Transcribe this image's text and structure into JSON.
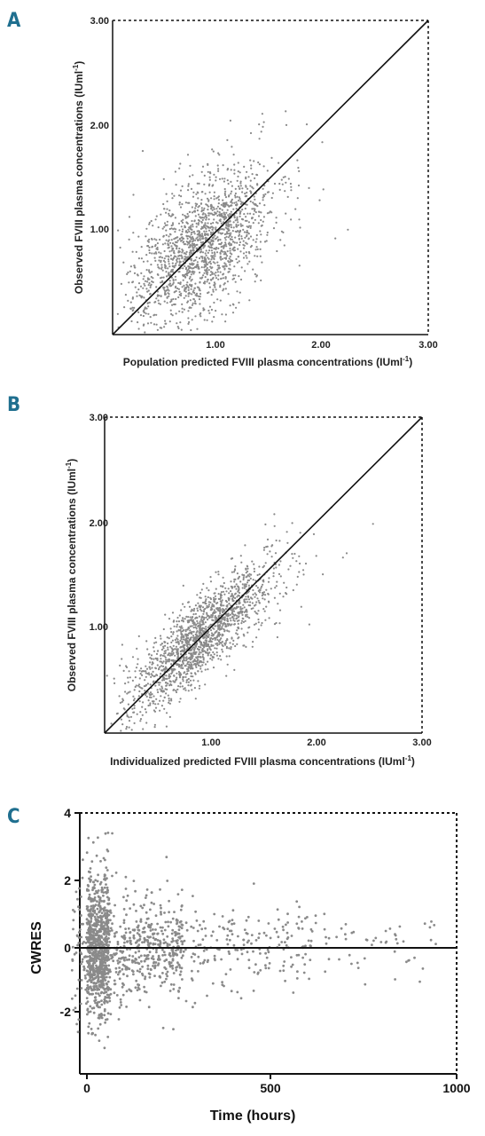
{
  "chart_data": [
    {
      "panel": "A",
      "type": "scatter",
      "xlabel": "Population predicted FVIII plasma concentrations (IUml",
      "xlabel_sup": "-1",
      "xlabel_end": ")",
      "ylabel": "Observed FVIII plasma concentrations (IUml",
      "ylabel_sup": "-1",
      "ylabel_end": ")",
      "xticks": [
        "1.00",
        "2.00",
        "3.00"
      ],
      "yticks": [
        "1.00",
        "2.00",
        "3.00"
      ],
      "xlim": [
        0,
        3
      ],
      "ylim": [
        0,
        3
      ],
      "reference_line": "identity",
      "cloud": {
        "x_mean": 0.85,
        "x_sd": 0.32,
        "y_mean": 0.85,
        "y_sd": 0.38,
        "corr": 0.55,
        "n": 1700
      }
    },
    {
      "panel": "B",
      "type": "scatter",
      "xlabel": "Individualized predicted FVIII plasma concentrations (IUml",
      "xlabel_sup": "-1",
      "xlabel_end": ")",
      "ylabel": "Observed FVIII plasma concentrations (IUml",
      "ylabel_sup": "-1",
      "ylabel_end": ")",
      "xticks": [
        "1.00",
        "2.00",
        "3.00"
      ],
      "yticks": [
        "1.00",
        "2.00",
        "3.00"
      ],
      "xlim": [
        0,
        3
      ],
      "ylim": [
        0,
        3
      ],
      "reference_line": "identity",
      "cloud": {
        "x_mean": 0.9,
        "x_sd": 0.33,
        "y_mean": 0.9,
        "y_sd": 0.36,
        "corr": 0.85,
        "n": 1700
      }
    },
    {
      "panel": "C",
      "type": "scatter",
      "xlabel": "Time (hours)",
      "ylabel": "CWRES",
      "xticks": [
        "0",
        "500",
        "1000"
      ],
      "yticks": [
        "-2",
        "0",
        "2",
        "4"
      ],
      "xlim": [
        -50,
        1000
      ],
      "ylim": [
        -4.5,
        4
      ],
      "reference_line": "y=0",
      "cloud": {
        "n": 1600
      }
    }
  ]
}
